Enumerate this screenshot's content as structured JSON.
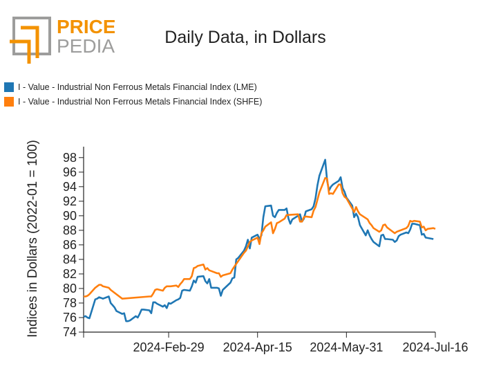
{
  "logo": {
    "text_top": "PRICE",
    "text_bottom": "PEDIA",
    "color_orange": "#f39200",
    "color_gray": "#9d9d9c"
  },
  "chart_data": {
    "type": "line",
    "title": "Daily Data, in Dollars",
    "ylabel": "Indices in Dollars (2022-01 = 100)",
    "xlabel": "",
    "ylim": [
      74,
      99.5
    ],
    "yticks": [
      74,
      76,
      78,
      80,
      82,
      84,
      86,
      88,
      90,
      92,
      94,
      96,
      98
    ],
    "xrange": [
      "2024-01-16",
      "2024-07-16"
    ],
    "xticks": [
      "2024-Feb-29",
      "2024-Apr-15",
      "2024-May-31",
      "2024-Jul-16"
    ],
    "xtick_dates": [
      "2024-02-29",
      "2024-04-15",
      "2024-05-31",
      "2024-07-16"
    ],
    "grid": false,
    "legend_position": "top-left",
    "series": [
      {
        "name": "I - Value - Industrial Non Ferrous Metals Financial Index (LME)",
        "color": "#1f77b4",
        "points": [
          [
            "2024-01-16",
            76.1
          ],
          [
            "2024-01-17",
            76.2
          ],
          [
            "2024-01-18",
            76.0
          ],
          [
            "2024-01-19",
            75.9
          ],
          [
            "2024-01-22",
            78.5
          ],
          [
            "2024-01-23",
            78.6
          ],
          [
            "2024-01-24",
            78.8
          ],
          [
            "2024-01-25",
            78.7
          ],
          [
            "2024-01-26",
            78.6
          ],
          [
            "2024-01-29",
            78.9
          ],
          [
            "2024-01-30",
            78.0
          ],
          [
            "2024-01-31",
            77.7
          ],
          [
            "2024-02-01",
            77.4
          ],
          [
            "2024-02-02",
            76.9
          ],
          [
            "2024-02-05",
            76.5
          ],
          [
            "2024-02-06",
            76.6
          ],
          [
            "2024-02-07",
            75.5
          ],
          [
            "2024-02-08",
            75.5
          ],
          [
            "2024-02-09",
            75.6
          ],
          [
            "2024-02-12",
            76.2
          ],
          [
            "2024-02-13",
            76.0
          ],
          [
            "2024-02-14",
            76.5
          ],
          [
            "2024-02-15",
            77.1
          ],
          [
            "2024-02-16",
            77.1
          ],
          [
            "2024-02-19",
            77.0
          ],
          [
            "2024-02-20",
            76.6
          ],
          [
            "2024-02-21",
            78.1
          ],
          [
            "2024-02-22",
            78.1
          ],
          [
            "2024-02-23",
            77.9
          ],
          [
            "2024-02-26",
            77.5
          ],
          [
            "2024-02-27",
            77.7
          ],
          [
            "2024-02-28",
            77.3
          ],
          [
            "2024-02-29",
            78.0
          ],
          [
            "2024-03-01",
            77.9
          ],
          [
            "2024-03-04",
            78.4
          ],
          [
            "2024-03-05",
            78.5
          ],
          [
            "2024-03-06",
            78.7
          ],
          [
            "2024-03-07",
            79.7
          ],
          [
            "2024-03-08",
            79.8
          ],
          [
            "2024-03-11",
            79.7
          ],
          [
            "2024-03-12",
            80.3
          ],
          [
            "2024-03-13",
            81.1
          ],
          [
            "2024-03-14",
            80.8
          ],
          [
            "2024-03-15",
            81.6
          ],
          [
            "2024-03-18",
            81.7
          ],
          [
            "2024-03-19",
            81.0
          ],
          [
            "2024-03-20",
            80.7
          ],
          [
            "2024-03-21",
            81.3
          ],
          [
            "2024-03-22",
            80.1
          ],
          [
            "2024-03-25",
            80.1
          ],
          [
            "2024-03-26",
            80.0
          ],
          [
            "2024-03-27",
            79.0
          ],
          [
            "2024-03-28",
            79.8
          ],
          [
            "2024-04-01",
            80.8
          ],
          [
            "2024-04-02",
            81.4
          ],
          [
            "2024-04-03",
            81.5
          ],
          [
            "2024-04-04",
            84.0
          ],
          [
            "2024-04-05",
            84.2
          ],
          [
            "2024-04-08",
            85.2
          ],
          [
            "2024-04-09",
            85.8
          ],
          [
            "2024-04-10",
            86.7
          ],
          [
            "2024-04-11",
            85.5
          ],
          [
            "2024-04-12",
            87.0
          ],
          [
            "2024-04-15",
            87.4
          ],
          [
            "2024-04-16",
            86.8
          ],
          [
            "2024-04-17",
            87.3
          ],
          [
            "2024-04-18",
            89.8
          ],
          [
            "2024-04-19",
            91.3
          ],
          [
            "2024-04-22",
            91.4
          ],
          [
            "2024-04-23",
            90.0
          ],
          [
            "2024-04-24",
            89.8
          ],
          [
            "2024-04-25",
            90.4
          ],
          [
            "2024-04-26",
            90.8
          ],
          [
            "2024-04-29",
            90.8
          ],
          [
            "2024-04-30",
            91.0
          ],
          [
            "2024-05-01",
            89.6
          ],
          [
            "2024-05-02",
            88.9
          ],
          [
            "2024-05-03",
            89.5
          ],
          [
            "2024-05-06",
            90.0
          ],
          [
            "2024-05-07",
            90.2
          ],
          [
            "2024-05-08",
            89.2
          ],
          [
            "2024-05-09",
            89.6
          ],
          [
            "2024-05-10",
            90.6
          ],
          [
            "2024-05-13",
            90.9
          ],
          [
            "2024-05-14",
            91.3
          ],
          [
            "2024-05-15",
            92.4
          ],
          [
            "2024-05-16",
            94.2
          ],
          [
            "2024-05-17",
            95.5
          ],
          [
            "2024-05-20",
            97.7
          ],
          [
            "2024-05-21",
            94.8
          ],
          [
            "2024-05-22",
            93.5
          ],
          [
            "2024-05-23",
            94.0
          ],
          [
            "2024-05-24",
            94.3
          ],
          [
            "2024-05-27",
            94.8
          ],
          [
            "2024-05-28",
            95.3
          ],
          [
            "2024-05-29",
            93.8
          ],
          [
            "2024-05-30",
            93.3
          ],
          [
            "2024-05-31",
            92.5
          ],
          [
            "2024-06-03",
            91.4
          ],
          [
            "2024-06-04",
            89.8
          ],
          [
            "2024-06-05",
            90.3
          ],
          [
            "2024-06-06",
            89.8
          ],
          [
            "2024-06-07",
            88.7
          ],
          [
            "2024-06-10",
            87.3
          ],
          [
            "2024-06-11",
            88.0
          ],
          [
            "2024-06-12",
            87.3
          ],
          [
            "2024-06-13",
            86.8
          ],
          [
            "2024-06-14",
            86.4
          ],
          [
            "2024-06-17",
            85.8
          ],
          [
            "2024-06-18",
            87.3
          ],
          [
            "2024-06-19",
            87.4
          ],
          [
            "2024-06-20",
            86.8
          ],
          [
            "2024-06-21",
            86.8
          ],
          [
            "2024-06-24",
            86.7
          ],
          [
            "2024-06-25",
            86.4
          ],
          [
            "2024-06-26",
            86.6
          ],
          [
            "2024-06-27",
            87.2
          ],
          [
            "2024-06-28",
            87.4
          ],
          [
            "2024-07-01",
            87.7
          ],
          [
            "2024-07-02",
            87.6
          ],
          [
            "2024-07-03",
            88.1
          ],
          [
            "2024-07-04",
            88.9
          ],
          [
            "2024-07-05",
            88.9
          ],
          [
            "2024-07-08",
            88.7
          ],
          [
            "2024-07-09",
            87.4
          ],
          [
            "2024-07-10",
            87.5
          ],
          [
            "2024-07-11",
            87.0
          ],
          [
            "2024-07-15",
            86.8
          ]
        ]
      },
      {
        "name": "I - Value - Industrial Non Ferrous Metals Financial Index (SHFE)",
        "color": "#ff7f0e",
        "points": [
          [
            "2024-01-16",
            78.9
          ],
          [
            "2024-01-17",
            78.9
          ],
          [
            "2024-01-18",
            79.0
          ],
          [
            "2024-01-19",
            79.2
          ],
          [
            "2024-01-22",
            80.1
          ],
          [
            "2024-01-23",
            80.3
          ],
          [
            "2024-01-24",
            80.5
          ],
          [
            "2024-01-25",
            80.5
          ],
          [
            "2024-01-26",
            80.3
          ],
          [
            "2024-01-29",
            80.1
          ],
          [
            "2024-01-30",
            79.8
          ],
          [
            "2024-02-05",
            78.6
          ],
          [
            "2024-02-19",
            78.9
          ],
          [
            "2024-02-20",
            78.9
          ],
          [
            "2024-02-21",
            79.3
          ],
          [
            "2024-02-22",
            79.8
          ],
          [
            "2024-02-23",
            79.9
          ],
          [
            "2024-02-26",
            79.7
          ],
          [
            "2024-02-27",
            80.1
          ],
          [
            "2024-02-28",
            80.3
          ],
          [
            "2024-02-29",
            80.3
          ],
          [
            "2024-03-01",
            80.3
          ],
          [
            "2024-03-04",
            80.4
          ],
          [
            "2024-03-05",
            80.2
          ],
          [
            "2024-03-06",
            80.6
          ],
          [
            "2024-03-07",
            80.9
          ],
          [
            "2024-03-08",
            81.3
          ],
          [
            "2024-03-11",
            81.3
          ],
          [
            "2024-03-12",
            81.7
          ],
          [
            "2024-03-13",
            82.8
          ],
          [
            "2024-03-14",
            82.9
          ],
          [
            "2024-03-15",
            83.1
          ],
          [
            "2024-03-18",
            83.3
          ],
          [
            "2024-03-19",
            82.6
          ],
          [
            "2024-03-20",
            82.8
          ],
          [
            "2024-03-21",
            82.5
          ],
          [
            "2024-03-22",
            82.4
          ],
          [
            "2024-03-25",
            82.1
          ],
          [
            "2024-03-26",
            82.1
          ],
          [
            "2024-03-27",
            81.6
          ],
          [
            "2024-03-28",
            81.8
          ],
          [
            "2024-04-01",
            82.1
          ],
          [
            "2024-04-02",
            82.6
          ],
          [
            "2024-04-03",
            83.0
          ],
          [
            "2024-04-08",
            84.9
          ],
          [
            "2024-04-09",
            85.2
          ],
          [
            "2024-04-10",
            85.8
          ],
          [
            "2024-04-11",
            86.4
          ],
          [
            "2024-04-12",
            86.6
          ],
          [
            "2024-04-15",
            87.0
          ],
          [
            "2024-04-16",
            86.1
          ],
          [
            "2024-04-17",
            87.6
          ],
          [
            "2024-04-18",
            88.0
          ],
          [
            "2024-04-19",
            88.5
          ],
          [
            "2024-04-22",
            89.1
          ],
          [
            "2024-04-23",
            87.6
          ],
          [
            "2024-04-24",
            88.2
          ],
          [
            "2024-04-25",
            89.0
          ],
          [
            "2024-04-26",
            89.1
          ],
          [
            "2024-04-29",
            89.6
          ],
          [
            "2024-04-30",
            90.1
          ],
          [
            "2024-05-06",
            90.2
          ],
          [
            "2024-05-07",
            89.2
          ],
          [
            "2024-05-08",
            89.2
          ],
          [
            "2024-05-09",
            89.8
          ],
          [
            "2024-05-10",
            89.9
          ],
          [
            "2024-05-13",
            89.8
          ],
          [
            "2024-05-14",
            90.7
          ],
          [
            "2024-05-15",
            91.2
          ],
          [
            "2024-05-16",
            92.2
          ],
          [
            "2024-05-17",
            93.2
          ],
          [
            "2024-05-20",
            95.2
          ],
          [
            "2024-05-21",
            95.1
          ],
          [
            "2024-05-22",
            93.0
          ],
          [
            "2024-05-23",
            93.1
          ],
          [
            "2024-05-24",
            93.0
          ],
          [
            "2024-05-27",
            94.3
          ],
          [
            "2024-05-28",
            94.3
          ],
          [
            "2024-05-29",
            93.1
          ],
          [
            "2024-05-30",
            92.6
          ],
          [
            "2024-05-31",
            92.4
          ],
          [
            "2024-06-03",
            91.0
          ],
          [
            "2024-06-04",
            90.5
          ],
          [
            "2024-06-05",
            91.2
          ],
          [
            "2024-06-06",
            90.6
          ],
          [
            "2024-06-07",
            90.2
          ],
          [
            "2024-06-11",
            89.5
          ],
          [
            "2024-06-12",
            89.0
          ],
          [
            "2024-06-13",
            88.7
          ],
          [
            "2024-06-14",
            88.3
          ],
          [
            "2024-06-17",
            87.8
          ],
          [
            "2024-06-18",
            88.0
          ],
          [
            "2024-06-19",
            88.7
          ],
          [
            "2024-06-20",
            88.8
          ],
          [
            "2024-06-21",
            88.4
          ],
          [
            "2024-06-24",
            87.8
          ],
          [
            "2024-06-25",
            87.6
          ],
          [
            "2024-06-26",
            87.8
          ],
          [
            "2024-06-27",
            87.9
          ],
          [
            "2024-06-28",
            88.0
          ],
          [
            "2024-07-01",
            88.3
          ],
          [
            "2024-07-02",
            88.6
          ],
          [
            "2024-07-03",
            89.3
          ],
          [
            "2024-07-04",
            89.2
          ],
          [
            "2024-07-05",
            89.3
          ],
          [
            "2024-07-08",
            89.2
          ],
          [
            "2024-07-09",
            88.4
          ],
          [
            "2024-07-10",
            88.5
          ],
          [
            "2024-07-11",
            88.0
          ],
          [
            "2024-07-12",
            88.2
          ],
          [
            "2024-07-15",
            88.3
          ],
          [
            "2024-07-16",
            88.2
          ]
        ]
      }
    ]
  }
}
